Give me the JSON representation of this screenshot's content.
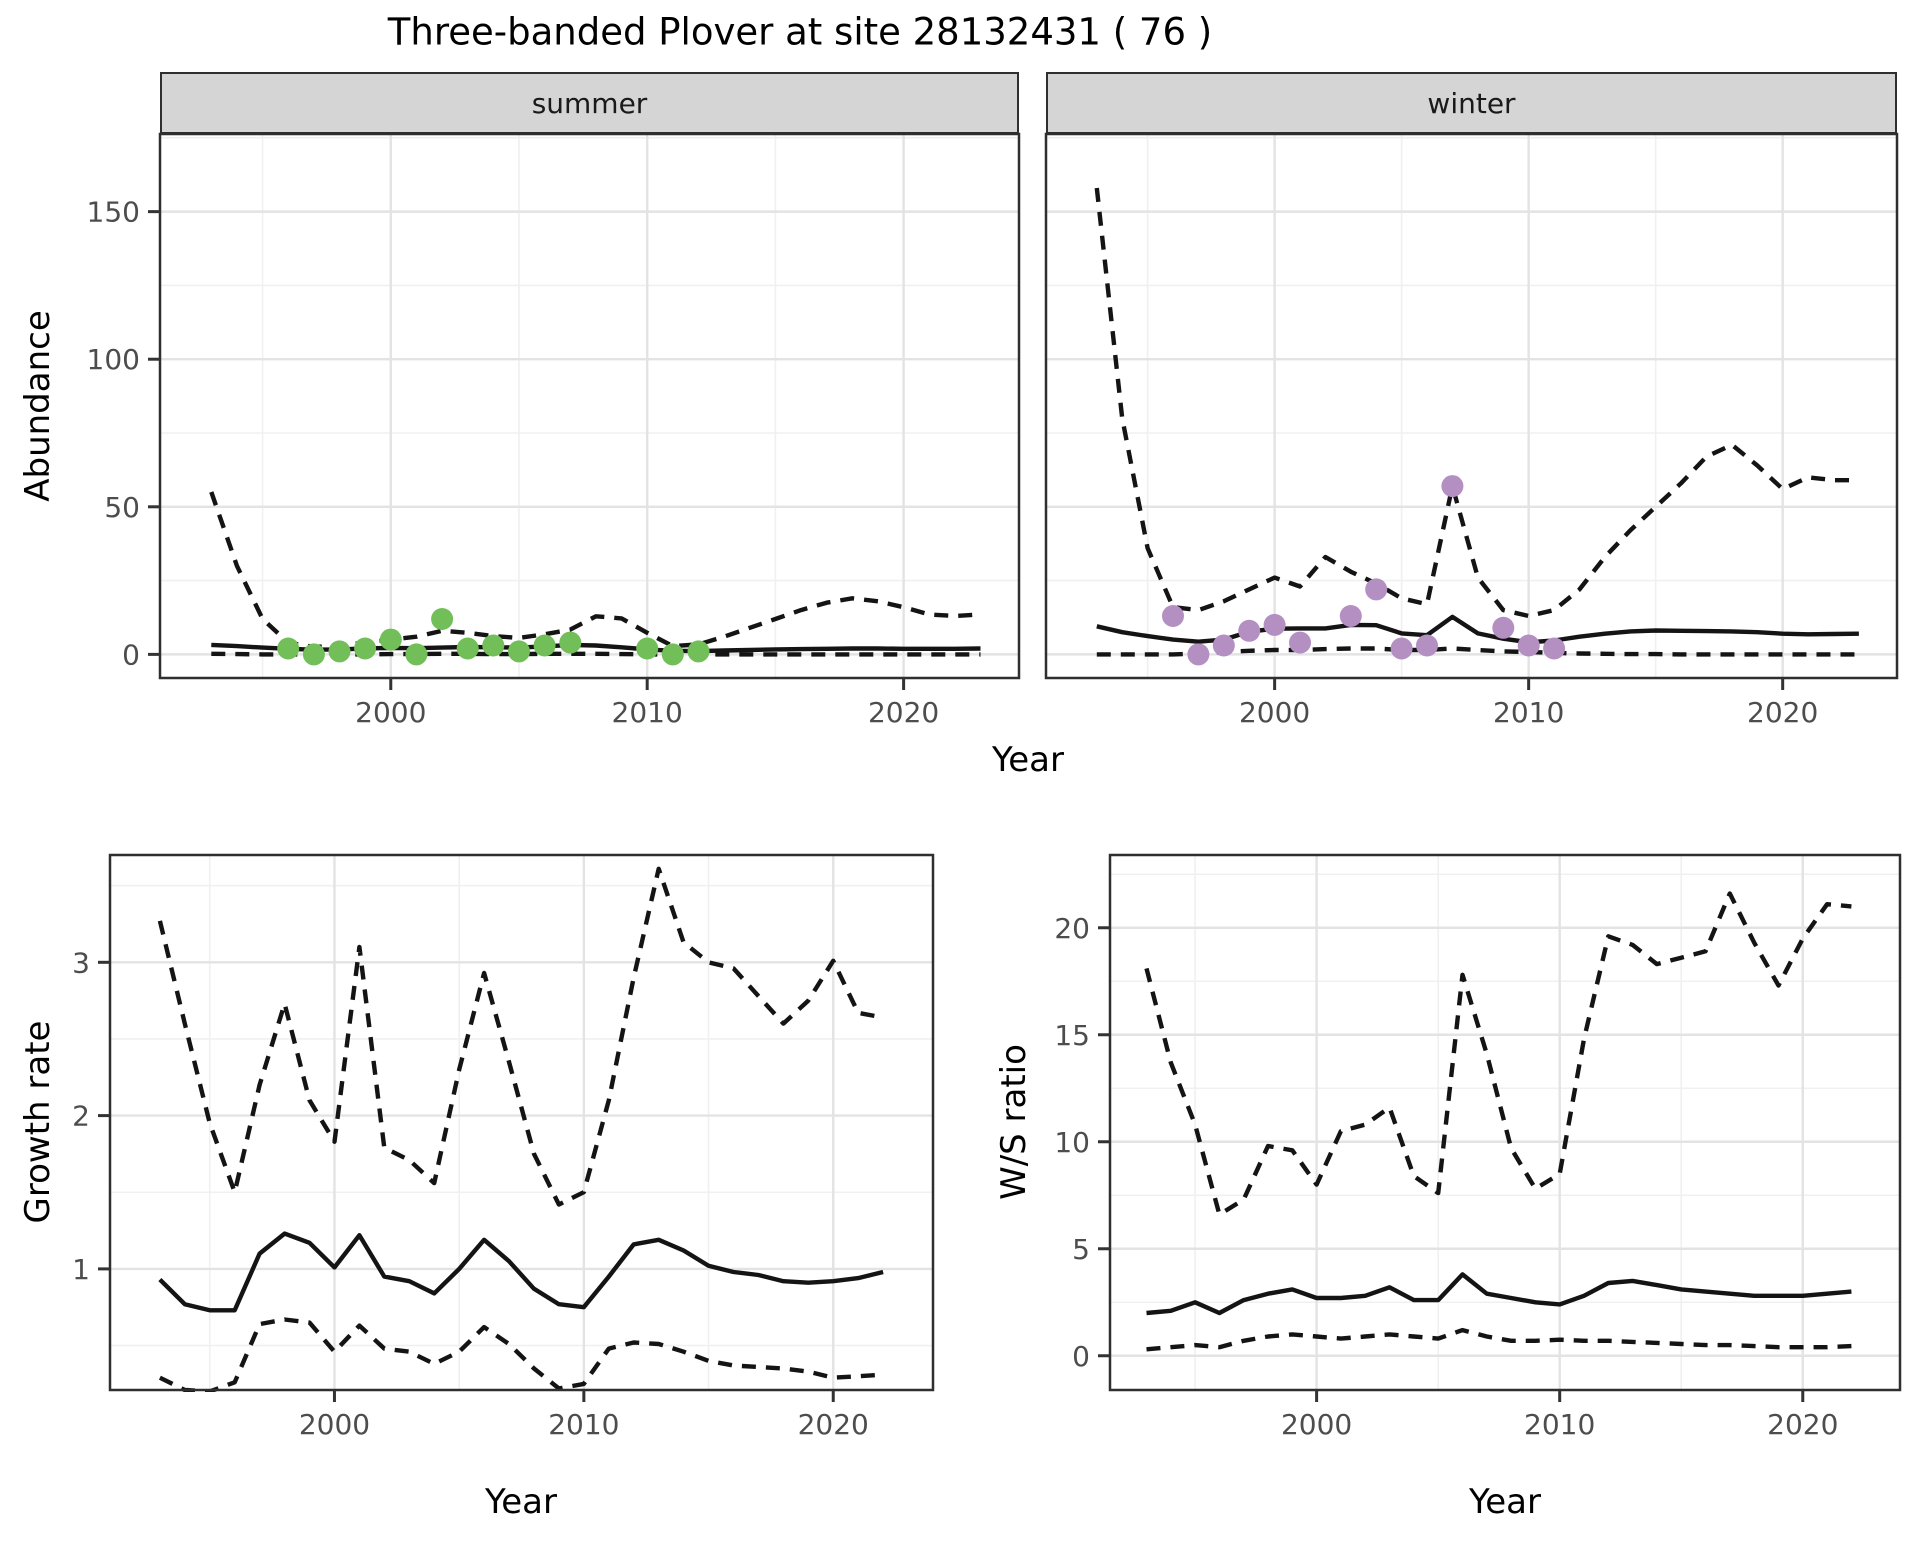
{
  "title": "Three-banded Plover at site 28132431 ( 76 )",
  "colors": {
    "summer_points": "#72bf5a",
    "winter_points": "#b48fc2",
    "line": "#141414",
    "strip_bg": "#d5d5d5",
    "panel_border": "#2f2f2f",
    "grid_major": "#e3e3e3",
    "grid_minor": "#f0f0f0",
    "tick_text": "#4d4d4d"
  },
  "chart_data": [
    {
      "id": "abundance-summer",
      "type": "line",
      "facet": "summer",
      "xlabel": "Year",
      "ylabel": "Abundance",
      "xlim": [
        1991,
        2024.5
      ],
      "ylim": [
        -8,
        176.3
      ],
      "xticks": [
        2000,
        2010,
        2020
      ],
      "yticks": [
        0,
        50,
        100,
        150
      ],
      "xticks_minor": [
        1995,
        2005,
        2015
      ],
      "yticks_minor": [
        25,
        75,
        125,
        175
      ],
      "grid": true,
      "legend": "none",
      "x": [
        1993,
        1994,
        1995,
        1996,
        1997,
        1998,
        1999,
        2000,
        2001,
        2002,
        2003,
        2004,
        2005,
        2006,
        2007,
        2008,
        2009,
        2010,
        2011,
        2012,
        2013,
        2014,
        2015,
        2016,
        2017,
        2018,
        2019,
        2020,
        2021,
        2022,
        2023
      ],
      "series": [
        {
          "name": "upper-95ci",
          "style": "dashed",
          "values": [
            55,
            30,
            12,
            4,
            2.5,
            3,
            4,
            5,
            6,
            8,
            7.3,
            6.2,
            5.6,
            6.8,
            8.4,
            12.9,
            12.2,
            7.3,
            2.8,
            3.4,
            6,
            9,
            12,
            15,
            17.5,
            19,
            18,
            16,
            13.5,
            13,
            13.5
          ]
        },
        {
          "name": "median",
          "style": "solid",
          "values": [
            3.2,
            2.8,
            2.3,
            1.9,
            1.6,
            1.7,
            2.0,
            2.2,
            2.1,
            2.3,
            2.5,
            2.4,
            2.3,
            2.7,
            3.2,
            3.0,
            2.4,
            1.7,
            1.2,
            1.1,
            1.3,
            1.5,
            1.7,
            1.8,
            1.9,
            2.0,
            2.0,
            1.9,
            1.9,
            1.9,
            2.0
          ]
        },
        {
          "name": "lower-95ci",
          "style": "dashed",
          "values": [
            0.2,
            0.1,
            0,
            0,
            0,
            0,
            0,
            0.1,
            0.1,
            0.2,
            0.2,
            0.1,
            0.1,
            0.2,
            0.2,
            0.2,
            0.1,
            0,
            0,
            0,
            0,
            0,
            0,
            0,
            0,
            0,
            0,
            0,
            0,
            0,
            0
          ]
        }
      ],
      "points": {
        "name": "observed-counts-summer",
        "color": "#72bf5a",
        "x": [
          1996,
          1997,
          1998,
          1999,
          2000,
          2001,
          2002,
          2003,
          2004,
          2005,
          2006,
          2007,
          2010,
          2011,
          2012
        ],
        "values": [
          2,
          0,
          1,
          2,
          5,
          0,
          12,
          2,
          3,
          1,
          3,
          4,
          2,
          0,
          1
        ]
      }
    },
    {
      "id": "abundance-winter",
      "type": "line",
      "facet": "winter",
      "xlabel": "Year",
      "ylabel": "Abundance",
      "xlim": [
        1991,
        2024.5
      ],
      "ylim": [
        -8,
        176.3
      ],
      "xticks": [
        2000,
        2010,
        2020
      ],
      "yticks": [
        0,
        50,
        100,
        150
      ],
      "xticks_minor": [
        1995,
        2005,
        2015
      ],
      "yticks_minor": [
        25,
        75,
        125,
        175
      ],
      "grid": true,
      "legend": "none",
      "x": [
        1993,
        1994,
        1995,
        1996,
        1997,
        1998,
        1999,
        2000,
        2001,
        2002,
        2003,
        2004,
        2005,
        2006,
        2007,
        2008,
        2009,
        2010,
        2011,
        2012,
        2013,
        2014,
        2015,
        2016,
        2017,
        2018,
        2019,
        2020,
        2021,
        2022,
        2023
      ],
      "series": [
        {
          "name": "upper-95ci",
          "style": "dashed",
          "values": [
            158,
            80,
            36,
            16,
            15,
            18,
            22,
            26,
            23,
            33,
            28,
            24,
            19,
            17,
            57,
            26,
            15,
            13,
            15,
            22,
            33,
            42,
            50,
            58,
            67,
            71,
            64,
            56,
            60,
            59,
            59
          ]
        },
        {
          "name": "median",
          "style": "solid",
          "values": [
            9.5,
            7.5,
            6.2,
            5,
            4.3,
            5,
            7.7,
            8.7,
            8.8,
            8.8,
            10,
            9.9,
            7.1,
            6.5,
            12.7,
            7.1,
            5.3,
            4.1,
            4.7,
            6,
            7,
            7.8,
            8.1,
            8,
            7.9,
            7.8,
            7.5,
            7,
            6.8,
            6.9,
            7
          ]
        },
        {
          "name": "lower-95ci",
          "style": "dashed",
          "values": [
            0,
            0,
            0,
            0,
            0.3,
            0.8,
            1.2,
            1.5,
            1.5,
            1.8,
            2,
            2,
            1.5,
            1.5,
            2,
            1.5,
            1,
            0.8,
            0.5,
            0.3,
            0.2,
            0.1,
            0.1,
            0,
            0,
            0,
            0,
            0,
            0,
            0,
            0
          ]
        }
      ],
      "points": {
        "name": "observed-counts-winter",
        "color": "#b48fc2",
        "x": [
          1996,
          1997,
          1998,
          1999,
          2000,
          2001,
          2003,
          2004,
          2005,
          2006,
          2007,
          2009,
          2010,
          2011
        ],
        "values": [
          13,
          0,
          3,
          8,
          10,
          4,
          13,
          22,
          2,
          3,
          57,
          9,
          3,
          2
        ]
      }
    },
    {
      "id": "growth-rate",
      "type": "line",
      "facet": null,
      "xlabel": "Year",
      "ylabel": "Growth rate",
      "xlim": [
        1991,
        2024
      ],
      "ylim": [
        0.21,
        3.7
      ],
      "xticks": [
        2000,
        2010,
        2020
      ],
      "yticks": [
        1,
        2,
        3
      ],
      "xticks_minor": [
        1995,
        2005,
        2015
      ],
      "yticks_minor": [
        0.5,
        1.5,
        2.5,
        3.5
      ],
      "grid": true,
      "legend": "none",
      "x": [
        1993,
        1994,
        1995,
        1996,
        1997,
        1998,
        1999,
        2000,
        2001,
        2002,
        2003,
        2004,
        2005,
        2006,
        2007,
        2008,
        2009,
        2010,
        2011,
        2012,
        2013,
        2014,
        2015,
        2016,
        2017,
        2018,
        2019,
        2020,
        2021,
        2022
      ],
      "series": [
        {
          "name": "upper-95ci",
          "style": "dashed",
          "values": [
            3.27,
            2.6,
            1.95,
            1.5,
            2.2,
            2.73,
            2.1,
            1.83,
            3.1,
            1.79,
            1.71,
            1.56,
            2.3,
            2.93,
            2.35,
            1.75,
            1.42,
            1.5,
            2.1,
            2.9,
            3.61,
            3.13,
            3.0,
            2.96,
            2.78,
            2.6,
            2.75,
            3.01,
            2.67,
            2.64
          ]
        },
        {
          "name": "median",
          "style": "solid",
          "values": [
            0.93,
            0.77,
            0.73,
            0.73,
            1.1,
            1.23,
            1.17,
            1.01,
            1.22,
            0.95,
            0.92,
            0.84,
            1.0,
            1.19,
            1.05,
            0.87,
            0.77,
            0.75,
            0.95,
            1.16,
            1.19,
            1.12,
            1.02,
            0.98,
            0.96,
            0.92,
            0.91,
            0.92,
            0.94,
            0.98
          ]
        },
        {
          "name": "lower-95ci",
          "style": "dashed",
          "values": [
            0.29,
            0.21,
            0.2,
            0.26,
            0.64,
            0.67,
            0.65,
            0.46,
            0.63,
            0.48,
            0.46,
            0.38,
            0.46,
            0.62,
            0.51,
            0.35,
            0.22,
            0.25,
            0.48,
            0.52,
            0.51,
            0.46,
            0.4,
            0.37,
            0.36,
            0.35,
            0.33,
            0.29,
            0.3,
            0.31
          ]
        }
      ],
      "points": null
    },
    {
      "id": "ws-ratio",
      "type": "line",
      "facet": null,
      "xlabel": "Year",
      "ylabel": "W/S ratio",
      "xlim": [
        1991.5,
        2024
      ],
      "ylim": [
        -1.6,
        23.4
      ],
      "xticks": [
        2000,
        2010,
        2020
      ],
      "yticks": [
        0,
        5,
        10,
        15,
        20
      ],
      "xticks_minor": [
        1995,
        2005,
        2015
      ],
      "yticks_minor": [
        2.5,
        7.5,
        12.5,
        17.5,
        22.5
      ],
      "grid": true,
      "legend": "none",
      "x": [
        1993,
        1994,
        1995,
        1996,
        1997,
        1998,
        1999,
        2000,
        2001,
        2002,
        2003,
        2004,
        2005,
        2006,
        2007,
        2008,
        2009,
        2010,
        2011,
        2012,
        2013,
        2014,
        2015,
        2016,
        2017,
        2018,
        2019,
        2020,
        2021,
        2022
      ],
      "series": [
        {
          "name": "upper-95ci",
          "style": "dashed",
          "values": [
            18.1,
            13.7,
            10.8,
            6.6,
            7.3,
            9.8,
            9.6,
            8.0,
            10.5,
            10.8,
            11.6,
            8.4,
            7.6,
            17.8,
            14.1,
            9.7,
            7.8,
            8.5,
            14.8,
            19.6,
            19.2,
            18.3,
            18.6,
            18.9,
            21.6,
            19.3,
            17.3,
            19.5,
            21.1,
            21.0
          ]
        },
        {
          "name": "median",
          "style": "solid",
          "values": [
            2.0,
            2.1,
            2.5,
            2.0,
            2.6,
            2.9,
            3.1,
            2.7,
            2.7,
            2.8,
            3.2,
            2.6,
            2.6,
            3.8,
            2.9,
            2.7,
            2.5,
            2.4,
            2.8,
            3.4,
            3.5,
            3.3,
            3.1,
            3.0,
            2.9,
            2.8,
            2.8,
            2.8,
            2.9,
            3.0
          ]
        },
        {
          "name": "lower-95ci",
          "style": "dashed",
          "values": [
            0.3,
            0.4,
            0.5,
            0.4,
            0.7,
            0.9,
            1.0,
            0.9,
            0.8,
            0.9,
            1.0,
            0.9,
            0.8,
            1.2,
            0.9,
            0.7,
            0.7,
            0.75,
            0.7,
            0.7,
            0.65,
            0.6,
            0.55,
            0.5,
            0.5,
            0.45,
            0.4,
            0.4,
            0.4,
            0.45
          ]
        }
      ],
      "points": null
    }
  ]
}
